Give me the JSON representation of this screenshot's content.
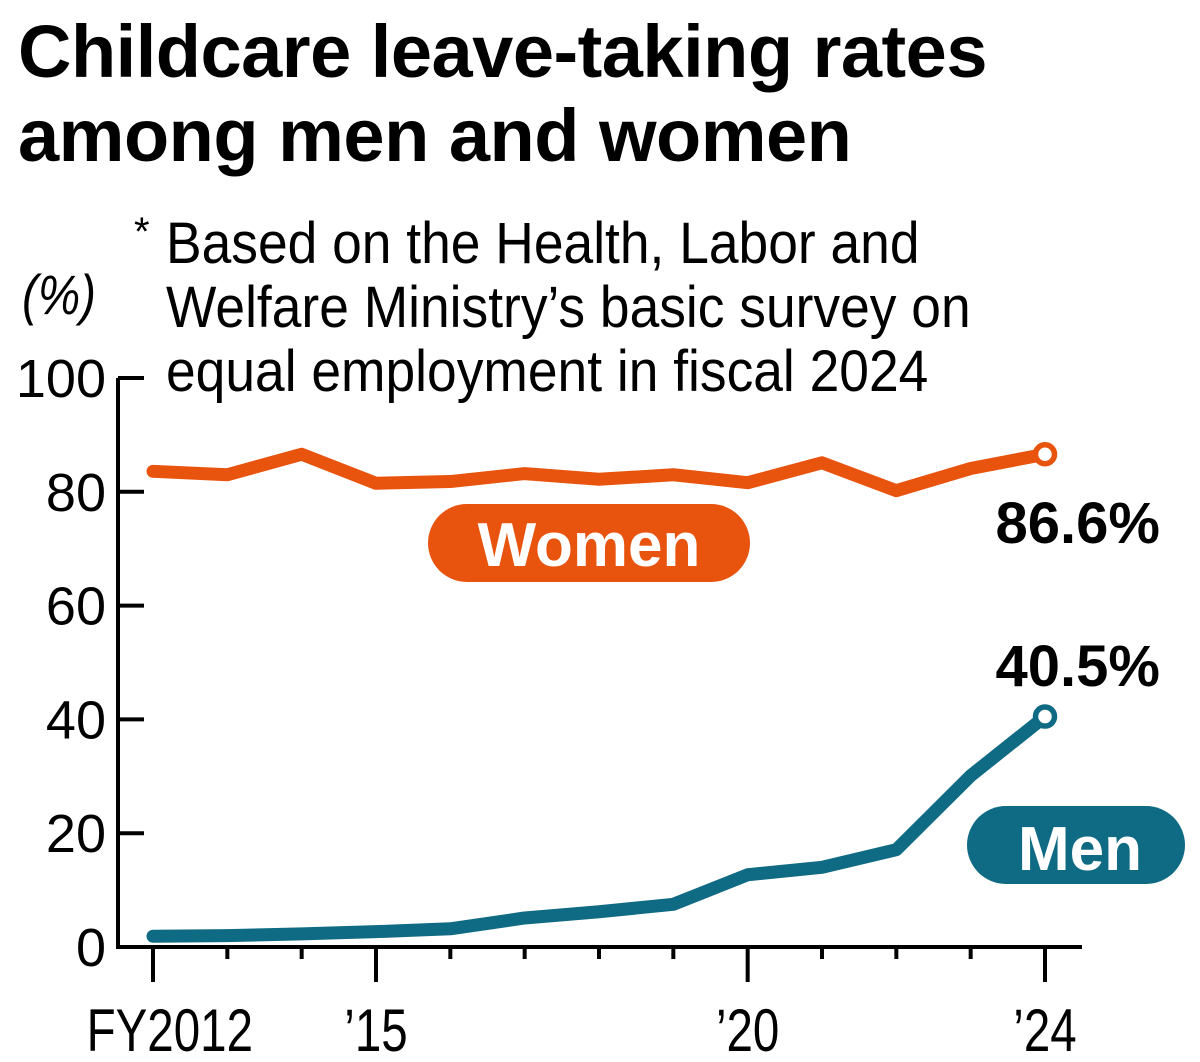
{
  "chart_data": {
    "type": "line",
    "title": "Childcare leave-taking rates among men and women",
    "note_marker": "*",
    "note": [
      "Based on the Health, Labor and",
      "Welfare Ministry’s basic survey on",
      "equal employment in fiscal 2024"
    ],
    "ylabel": "(%)",
    "xlabel": "",
    "ylim": [
      0,
      100
    ],
    "yticks": [
      0,
      20,
      40,
      60,
      80,
      100
    ],
    "ytick_labels": [
      "0",
      "20",
      "40",
      "60",
      "80",
      "100"
    ],
    "x": [
      2012,
      2013,
      2014,
      2015,
      2016,
      2017,
      2018,
      2019,
      2020,
      2021,
      2022,
      2023,
      2024
    ],
    "xlim": [
      2012,
      2024
    ],
    "xticks_major": [
      2012,
      2015,
      2020,
      2024
    ],
    "xtick_labels": [
      "FY2012",
      "’15",
      "’20",
      "’24"
    ],
    "grid": false,
    "series": [
      {
        "name": "Women",
        "color": "#e8530e",
        "values": [
          83.6,
          83.0,
          86.6,
          81.5,
          81.8,
          83.2,
          82.2,
          83.0,
          81.6,
          85.1,
          80.2,
          84.1,
          86.6
        ],
        "end_label": "86.6%"
      },
      {
        "name": "Men",
        "color": "#0f6a84",
        "values": [
          1.9,
          2.0,
          2.3,
          2.7,
          3.2,
          5.1,
          6.2,
          7.5,
          12.7,
          14.0,
          17.1,
          30.1,
          40.5
        ],
        "end_label": "40.5%"
      }
    ]
  }
}
